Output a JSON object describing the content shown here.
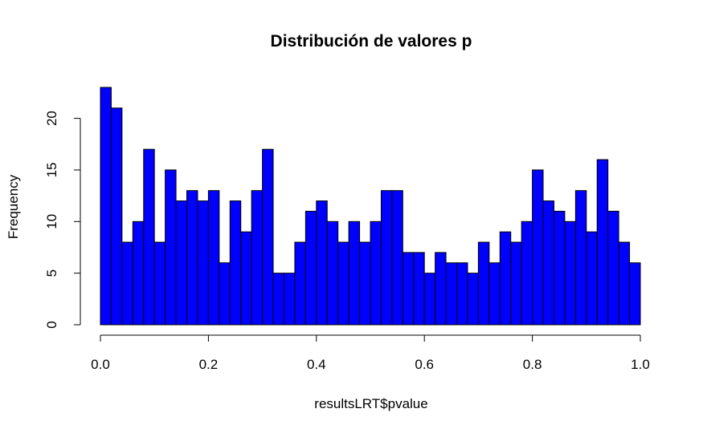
{
  "chart_data": {
    "type": "bar",
    "title": "Distribución de valores p",
    "xlabel": "resultsLRT$pvalue",
    "ylabel": "Frequency",
    "xlim": [
      0,
      1
    ],
    "ylim": [
      0,
      23
    ],
    "bin_width": 0.02,
    "x_ticks": [
      0,
      0.2,
      0.4,
      0.6,
      0.8,
      1.0
    ],
    "x_tick_labels": [
      "0.0",
      "0.2",
      "0.4",
      "0.6",
      "0.8",
      "1.0"
    ],
    "y_ticks": [
      0,
      5,
      10,
      15,
      20
    ],
    "y_tick_labels": [
      "0",
      "5",
      "10",
      "15",
      "20"
    ],
    "values": [
      23,
      21,
      8,
      10,
      17,
      8,
      15,
      12,
      13,
      12,
      13,
      6,
      12,
      9,
      13,
      17,
      5,
      5,
      8,
      11,
      12,
      10,
      8,
      10,
      8,
      10,
      13,
      13,
      7,
      7,
      5,
      7,
      6,
      6,
      5,
      8,
      6,
      9,
      8,
      10,
      15,
      12,
      11,
      10,
      13,
      9,
      16,
      11,
      8,
      6
    ],
    "bar_color": "#0000ff",
    "edge_color": "#000000"
  }
}
